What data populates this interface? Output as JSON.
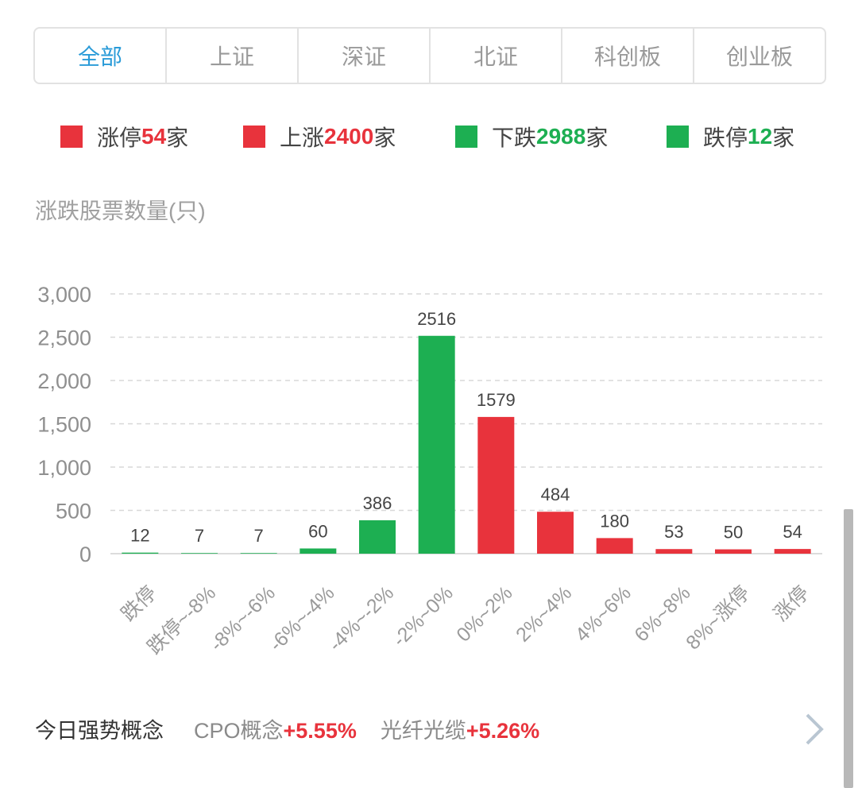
{
  "tabs": [
    "全部",
    "上证",
    "深证",
    "北证",
    "科创板",
    "创业板"
  ],
  "legend": [
    {
      "label": "涨停",
      "count": 54,
      "unit": "家",
      "color": "#e8333c"
    },
    {
      "label": "上涨",
      "count": 2400,
      "unit": "家",
      "color": "#e8333c"
    },
    {
      "label": "下跌",
      "count": 2988,
      "unit": "家",
      "color": "#1daf52"
    },
    {
      "label": "跌停",
      "count": 12,
      "unit": "家",
      "color": "#1daf52"
    }
  ],
  "chart_data": {
    "type": "bar",
    "title": "涨跌股票数量(只)",
    "categories": [
      "跌停",
      "跌停~-8%",
      "-8%~-6%",
      "-6%~-4%",
      "-4%~-2%",
      "-2%~0%",
      "0%~2%",
      "2%~4%",
      "4%~6%",
      "6%~8%",
      "8%~涨停",
      "涨停"
    ],
    "values": [
      12,
      7,
      7,
      60,
      386,
      2516,
      1579,
      484,
      180,
      53,
      50,
      54
    ],
    "colors": [
      "#1daf52",
      "#1daf52",
      "#1daf52",
      "#1daf52",
      "#1daf52",
      "#1daf52",
      "#e8333c",
      "#e8333c",
      "#e8333c",
      "#e8333c",
      "#e8333c",
      "#e8333c"
    ],
    "ylim": [
      0,
      3000
    ],
    "yticks": [
      0,
      500,
      {
        "value": 1000,
        "label": "1,000"
      },
      {
        "value": 1500,
        "label": "1,500"
      },
      {
        "value": 2000,
        "label": "2,000"
      },
      {
        "value": 2500,
        "label": "2,500"
      },
      {
        "value": 3000,
        "label": "3,000"
      }
    ],
    "grid": true
  },
  "strong_concepts": {
    "label": "今日强势概念",
    "items": [
      {
        "name": "CPO概念",
        "change": "+5.55%"
      },
      {
        "name": "光纤光缆",
        "change": "+5.26%"
      }
    ]
  }
}
